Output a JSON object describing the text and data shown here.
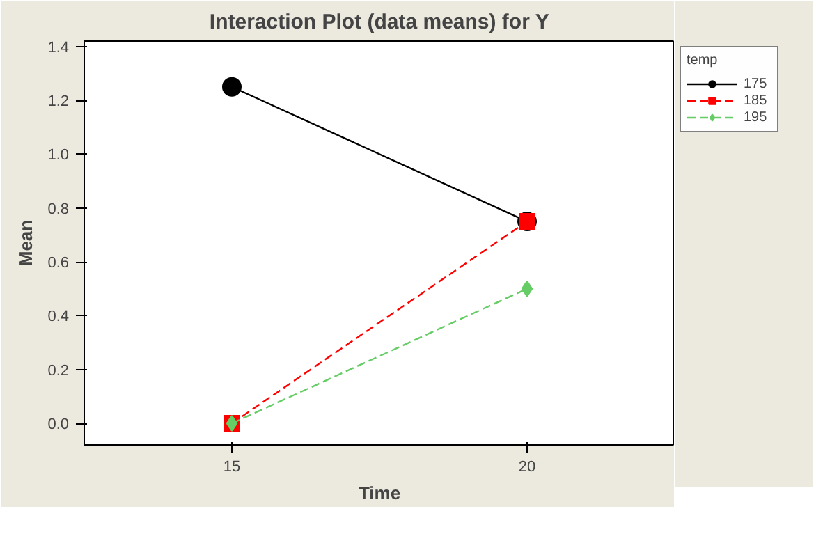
{
  "chart_data": {
    "type": "line",
    "title": "Interaction Plot (data means) for Y",
    "xlabel": "Time",
    "ylabel": "Mean",
    "legend_title": "temp",
    "x": [
      15,
      20
    ],
    "series": [
      {
        "name": "175",
        "color": "#000000",
        "values": [
          1.25,
          0.75
        ],
        "marker": "circle",
        "line_style": "solid"
      },
      {
        "name": "185",
        "color": "#ff0000",
        "values": [
          0.0,
          0.75
        ],
        "marker": "square",
        "line_style": "dashed"
      },
      {
        "name": "195",
        "color": "#66cc66",
        "values": [
          0.0,
          0.5
        ],
        "marker": "diamond",
        "line_style": "dashed"
      }
    ],
    "xlim": [
      12.5,
      22.5
    ],
    "xticks": [
      15,
      20
    ],
    "ylim": [
      -0.08,
      1.42
    ],
    "yticks": [
      {
        "value": 0,
        "label": "0.0"
      },
      0.2,
      0.4,
      0.6,
      0.8,
      {
        "value": 1,
        "label": "1.0"
      },
      1.2,
      1.4
    ],
    "grid": false,
    "legend": "right"
  }
}
